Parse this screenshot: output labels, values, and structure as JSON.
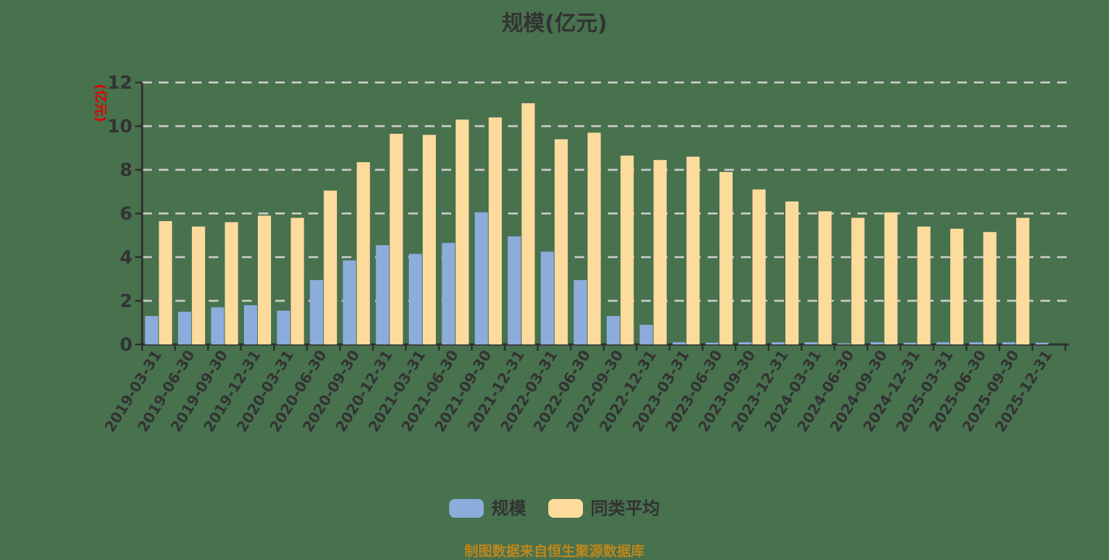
{
  "title": "规模(亿元)",
  "y_axis": {
    "unit_label": "(亿元)",
    "ticks": [
      0,
      2,
      4,
      6,
      8,
      10,
      12
    ],
    "max": 12
  },
  "legend": {
    "items": [
      {
        "label": "规模",
        "color": "#8CACDB"
      },
      {
        "label": "同类平均",
        "color": "#FCDB9D"
      }
    ]
  },
  "footer_note": "制图数据来自恒生聚源数据库",
  "colors": {
    "background": "#48714E",
    "series_scale": "#8CACDB",
    "series_peer_avg": "#FCDB9D",
    "axis": "#2E2E2E",
    "tick_label": "#333333",
    "gridline": "#CDCDCD",
    "title": "#333333",
    "unit_label": "#E00000",
    "footer": "#BE861C"
  },
  "chart_data": {
    "type": "bar",
    "title": "规模(亿元)",
    "ylabel": "(亿元)",
    "ylim": [
      0,
      12
    ],
    "y_ticks": [
      0,
      2,
      4,
      6,
      8,
      10,
      12
    ],
    "grid": "horizontal-dashed",
    "legend_position": "bottom",
    "categories": [
      "2019-03-31",
      "2019-06-30",
      "2019-09-30",
      "2019-12-31",
      "2020-03-31",
      "2020-06-30",
      "2020-09-30",
      "2020-12-31",
      "2021-03-31",
      "2021-06-30",
      "2021-09-30",
      "2021-12-31",
      "2022-03-31",
      "2022-06-30",
      "2022-09-30",
      "2022-12-31",
      "2023-03-31",
      "2023-06-30",
      "2023-09-30",
      "2023-12-31",
      "2024-03-31",
      "2024-06-30",
      "2024-09-30",
      "2024-12-31",
      "2025-03-31",
      "2025-06-30",
      "2025-09-30",
      "2025-12-31"
    ],
    "series": [
      {
        "name": "规模",
        "color": "#8CACDB",
        "values": [
          1.3,
          1.5,
          1.7,
          1.8,
          1.55,
          2.95,
          3.85,
          4.55,
          4.15,
          4.65,
          6.05,
          4.95,
          4.25,
          2.95,
          1.3,
          0.9,
          0.1,
          0.08,
          0.1,
          0.1,
          0.1,
          0.05,
          0.1,
          0.08,
          0.1,
          0.1,
          0.1,
          0.08
        ]
      },
      {
        "name": "同类平均",
        "color": "#FCDB9D",
        "values": [
          5.65,
          5.4,
          5.6,
          5.9,
          5.8,
          7.05,
          8.35,
          9.65,
          9.6,
          10.3,
          10.4,
          11.05,
          9.4,
          9.7,
          8.65,
          8.45,
          8.6,
          7.9,
          7.1,
          6.55,
          6.1,
          5.8,
          6.05,
          5.4,
          5.3,
          5.15,
          5.8,
          0
        ]
      }
    ]
  }
}
